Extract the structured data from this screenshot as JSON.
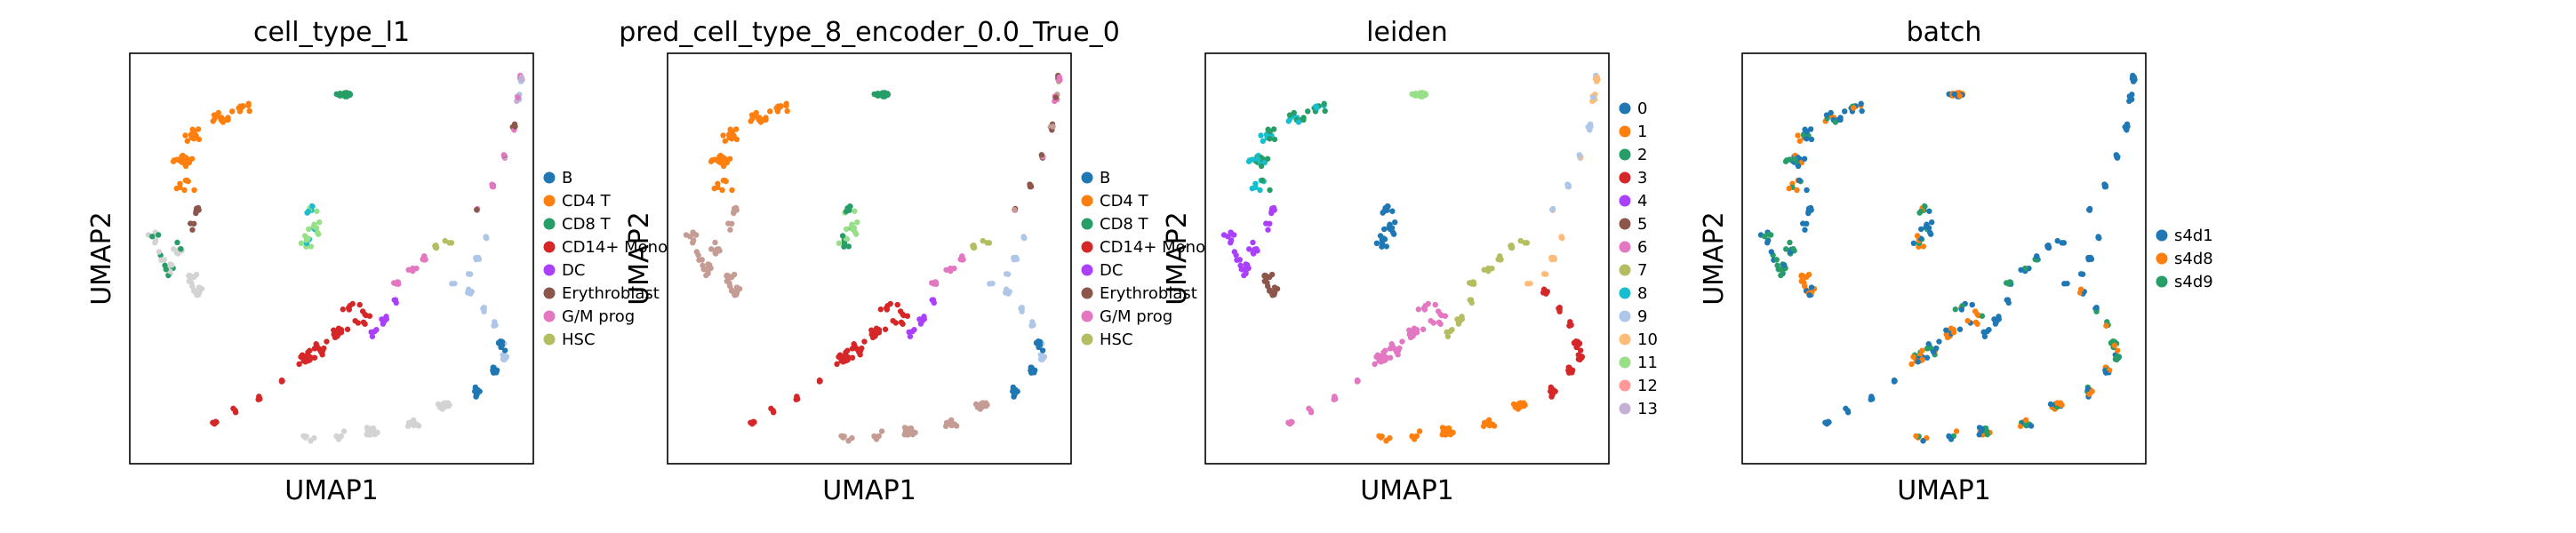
{
  "chart_data": [
    {
      "type": "scatter",
      "title": "cell_type_l1",
      "xlabel": "UMAP1",
      "ylabel": "UMAP2",
      "grid": false,
      "legend_position": "right",
      "legend": [
        {
          "label": "B",
          "color": "#1f77b4"
        },
        {
          "label": "CD4 T",
          "color": "#ff7f0e"
        },
        {
          "label": "CD8 T",
          "color": "#279e68"
        },
        {
          "label": "CD14+ Mono",
          "color": "#d62728"
        },
        {
          "label": "DC",
          "color": "#aa40fc"
        },
        {
          "label": "Erythroblast",
          "color": "#8c564b"
        },
        {
          "label": "G/M prog",
          "color": "#e377c2"
        },
        {
          "label": "HSC",
          "color": "#b5bd61"
        }
      ],
      "unlabeled_color": "#d3d3d3"
    },
    {
      "type": "scatter",
      "title": "pred_cell_type_8_encoder_0.0_True_0",
      "xlabel": "UMAP1",
      "ylabel": "UMAP2",
      "grid": false,
      "legend_position": "right",
      "legend": [
        {
          "label": "B",
          "color": "#1f77b4"
        },
        {
          "label": "CD4 T",
          "color": "#ff7f0e"
        },
        {
          "label": "CD8 T",
          "color": "#279e68"
        },
        {
          "label": "CD14+ Mono",
          "color": "#d62728"
        },
        {
          "label": "DC",
          "color": "#aa40fc"
        },
        {
          "label": "Erythroblast",
          "color": "#8c564b"
        },
        {
          "label": "G/M prog",
          "color": "#e377c2"
        },
        {
          "label": "HSC",
          "color": "#b5bd61"
        }
      ]
    },
    {
      "type": "scatter",
      "title": "leiden",
      "xlabel": "UMAP1",
      "ylabel": "UMAP2",
      "grid": false,
      "legend_position": "right",
      "legend": [
        {
          "label": "0",
          "color": "#1f77b4"
        },
        {
          "label": "1",
          "color": "#ff7f0e"
        },
        {
          "label": "2",
          "color": "#279e68"
        },
        {
          "label": "3",
          "color": "#d62728"
        },
        {
          "label": "4",
          "color": "#aa40fc"
        },
        {
          "label": "5",
          "color": "#8c564b"
        },
        {
          "label": "6",
          "color": "#e377c2"
        },
        {
          "label": "7",
          "color": "#b5bd61"
        },
        {
          "label": "8",
          "color": "#17becf"
        },
        {
          "label": "9",
          "color": "#aec7e8"
        },
        {
          "label": "10",
          "color": "#ffbb78"
        },
        {
          "label": "11",
          "color": "#98df8a"
        },
        {
          "label": "12",
          "color": "#ff9896"
        },
        {
          "label": "13",
          "color": "#c5b0d5"
        }
      ]
    },
    {
      "type": "scatter",
      "title": "batch",
      "xlabel": "UMAP1",
      "ylabel": "UMAP2",
      "grid": false,
      "legend_position": "right",
      "legend": [
        {
          "label": "s4d1",
          "color": "#1f77b4"
        },
        {
          "label": "s4d8",
          "color": "#ff7f0e"
        },
        {
          "label": "s4d9",
          "color": "#279e68"
        }
      ]
    }
  ]
}
